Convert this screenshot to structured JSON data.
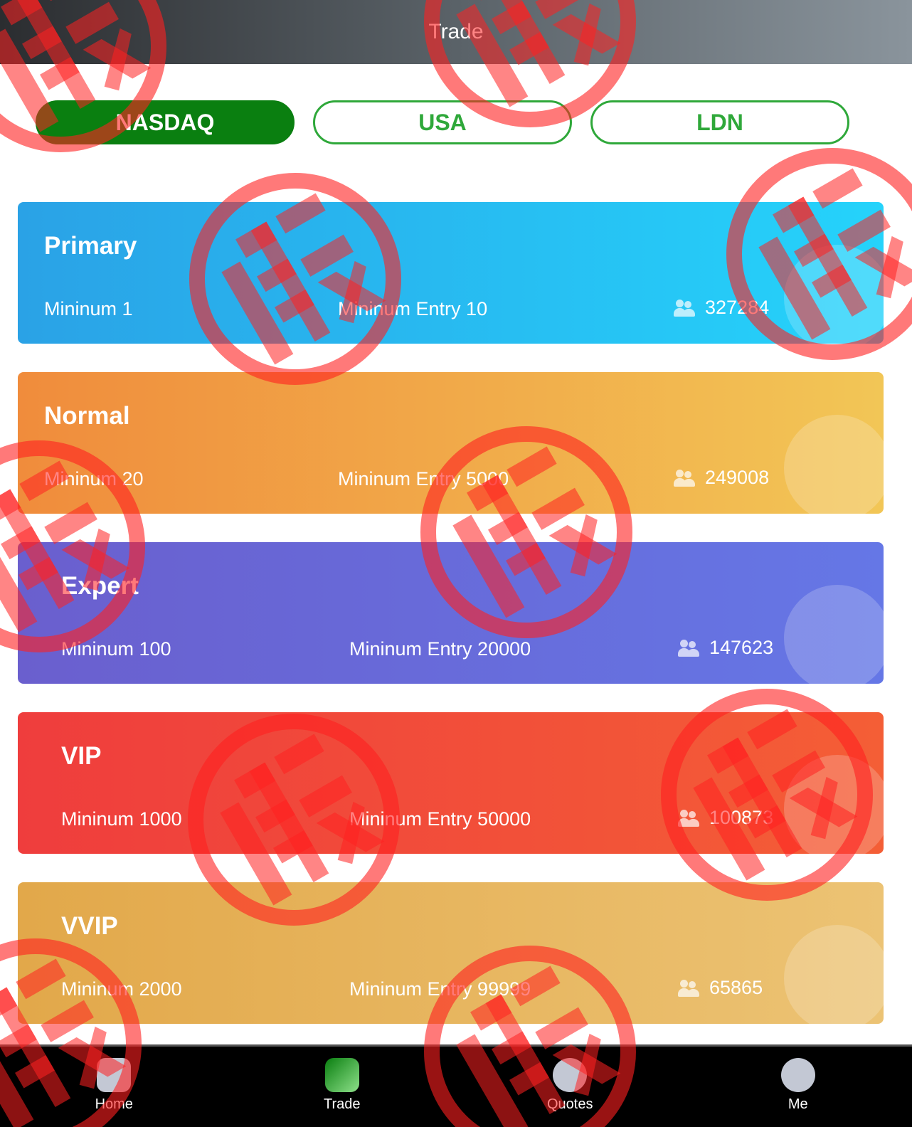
{
  "header": {
    "title": "Trade"
  },
  "tabs": [
    {
      "label": "NASDAQ",
      "active": true
    },
    {
      "label": "USA",
      "active": false
    },
    {
      "label": "LDN",
      "active": false
    }
  ],
  "cards": [
    {
      "title": "Primary",
      "minimum": "Mininum 1",
      "entry": "Mininum Entry 10",
      "users": "327284",
      "colors": [
        "#2aa2e6",
        "#25d3fb"
      ]
    },
    {
      "title": "Normal",
      "minimum": "Mininum 20",
      "entry": "Mininum Entry 5000",
      "users": "249008",
      "colors": [
        "#f08c3c",
        "#f2c656"
      ]
    },
    {
      "title": "Expert",
      "minimum": "Mininum 100",
      "entry": "Mininum Entry 20000",
      "users": "147623",
      "colors": [
        "#6a5fce",
        "#6577e6"
      ]
    },
    {
      "title": "VIP",
      "minimum": "Mininum 1000",
      "entry": "Mininum Entry 50000",
      "users": "100873",
      "colors": [
        "#ef3d3d",
        "#f45e36"
      ]
    },
    {
      "title": "VVIP",
      "minimum": "Mininum 2000",
      "entry": "Mininum Entry 99999",
      "users": "65865",
      "colors": [
        "#e2a84a",
        "#ecc374"
      ]
    }
  ],
  "nav": [
    {
      "label": "Home",
      "icon": "home-icon"
    },
    {
      "label": "Trade",
      "icon": "trade-chart-icon",
      "active": true
    },
    {
      "label": "Quotes",
      "icon": "quotes-icon"
    },
    {
      "label": "Me",
      "icon": "user-icon"
    }
  ],
  "watermark": {
    "stamp_text": "假",
    "color": "#ff2020"
  }
}
